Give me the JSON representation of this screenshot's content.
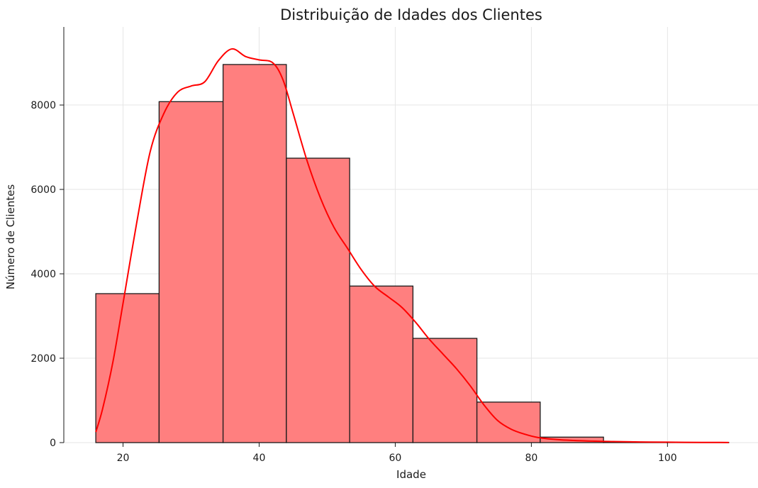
{
  "chart_data": {
    "type": "bar",
    "title": "Distribuição de Idades dos Clientes",
    "xlabel": "Idade",
    "ylabel": "Número de Clientes",
    "xlim": [
      11.3,
      113.3
    ],
    "ylim": [
      0,
      9850
    ],
    "xticks": [
      20,
      40,
      60,
      80,
      100
    ],
    "yticks": [
      0,
      2000,
      4000,
      6000,
      8000
    ],
    "grid": true,
    "bar_color": "#ff7f7f",
    "line_color": "#ff0000",
    "bins": [
      {
        "start": 16.0,
        "end": 25.3,
        "value": 3530
      },
      {
        "start": 25.3,
        "end": 34.7,
        "value": 8080
      },
      {
        "start": 34.7,
        "end": 44.0,
        "value": 8960
      },
      {
        "start": 44.0,
        "end": 53.3,
        "value": 6740
      },
      {
        "start": 53.3,
        "end": 62.6,
        "value": 3710
      },
      {
        "start": 62.6,
        "end": 72.0,
        "value": 2470
      },
      {
        "start": 72.0,
        "end": 81.3,
        "value": 960
      },
      {
        "start": 81.3,
        "end": 90.6,
        "value": 130
      },
      {
        "start": 90.6,
        "end": 99.9,
        "value": 10
      },
      {
        "start": 99.9,
        "end": 109.0,
        "value": 5
      }
    ],
    "kde": {
      "name": "",
      "x": [
        16.0,
        17.0,
        18.5,
        20.0,
        22.0,
        24.0,
        26.0,
        28.0,
        30.0,
        32.0,
        34.0,
        36.0,
        38.0,
        40.0,
        42.0,
        43.5,
        45.0,
        47.0,
        49.0,
        51.0,
        53.0,
        55.0,
        57.0,
        59.0,
        61.0,
        63.0,
        65.0,
        67.0,
        69.0,
        71.0,
        73.0,
        75.0,
        77.0,
        79.0,
        81.0,
        84.0,
        88.0,
        92.0,
        96.0,
        100.0,
        105.0,
        109.0
      ],
      "y": [
        250,
        800,
        1900,
        3300,
        5200,
        6900,
        7800,
        8300,
        8450,
        8550,
        9050,
        9330,
        9150,
        9070,
        9000,
        8600,
        7800,
        6700,
        5800,
        5100,
        4600,
        4100,
        3700,
        3450,
        3200,
        2850,
        2450,
        2100,
        1750,
        1350,
        900,
        530,
        320,
        200,
        120,
        70,
        40,
        25,
        15,
        10,
        5,
        3
      ]
    }
  }
}
